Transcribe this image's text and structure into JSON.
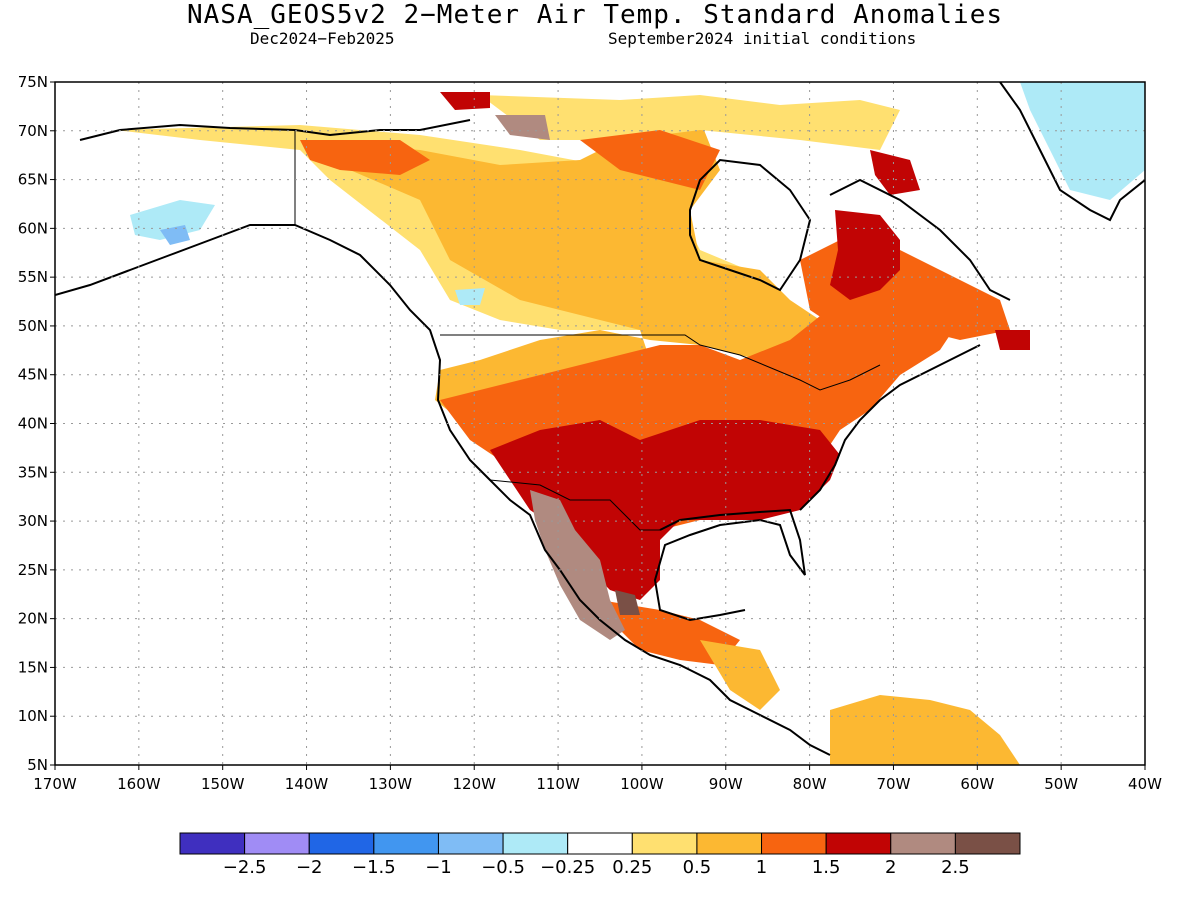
{
  "header": {
    "title": "NASA_GEOS5v2 2−Meter Air Temp. Standard Anomalies",
    "period": "Dec2024−Feb2025",
    "initial_conditions": "September2024 initial conditions"
  },
  "map": {
    "projection": "equirectangular",
    "lon_range": [
      -170,
      -40
    ],
    "lat_range": [
      5,
      75
    ],
    "latitude_labels": [
      "75N",
      "70N",
      "65N",
      "60N",
      "55N",
      "50N",
      "45N",
      "40N",
      "35N",
      "30N",
      "25N",
      "20N",
      "15N",
      "10N",
      "5N"
    ],
    "longitude_labels": [
      "170W",
      "160W",
      "150W",
      "140W",
      "130W",
      "120W",
      "110W",
      "100W",
      "90W",
      "80W",
      "70W",
      "60W",
      "50W",
      "40W"
    ],
    "gridlines": "dotted"
  },
  "colorbar": {
    "colors": [
      "#3f2fbf",
      "#a08cf5",
      "#2066e6",
      "#4196f0",
      "#7fbcf5",
      "#aeeaf7",
      "#ffffff",
      "#ffe070",
      "#fcb832",
      "#f76410",
      "#c10404",
      "#b08a80",
      "#7a5046"
    ],
    "labels": [
      "−2.5",
      "−2",
      "−1.5",
      "−1",
      "−0.5",
      "−0.25",
      "0.25",
      "0.5",
      "1",
      "1.5",
      "2",
      "2.5"
    ]
  }
}
